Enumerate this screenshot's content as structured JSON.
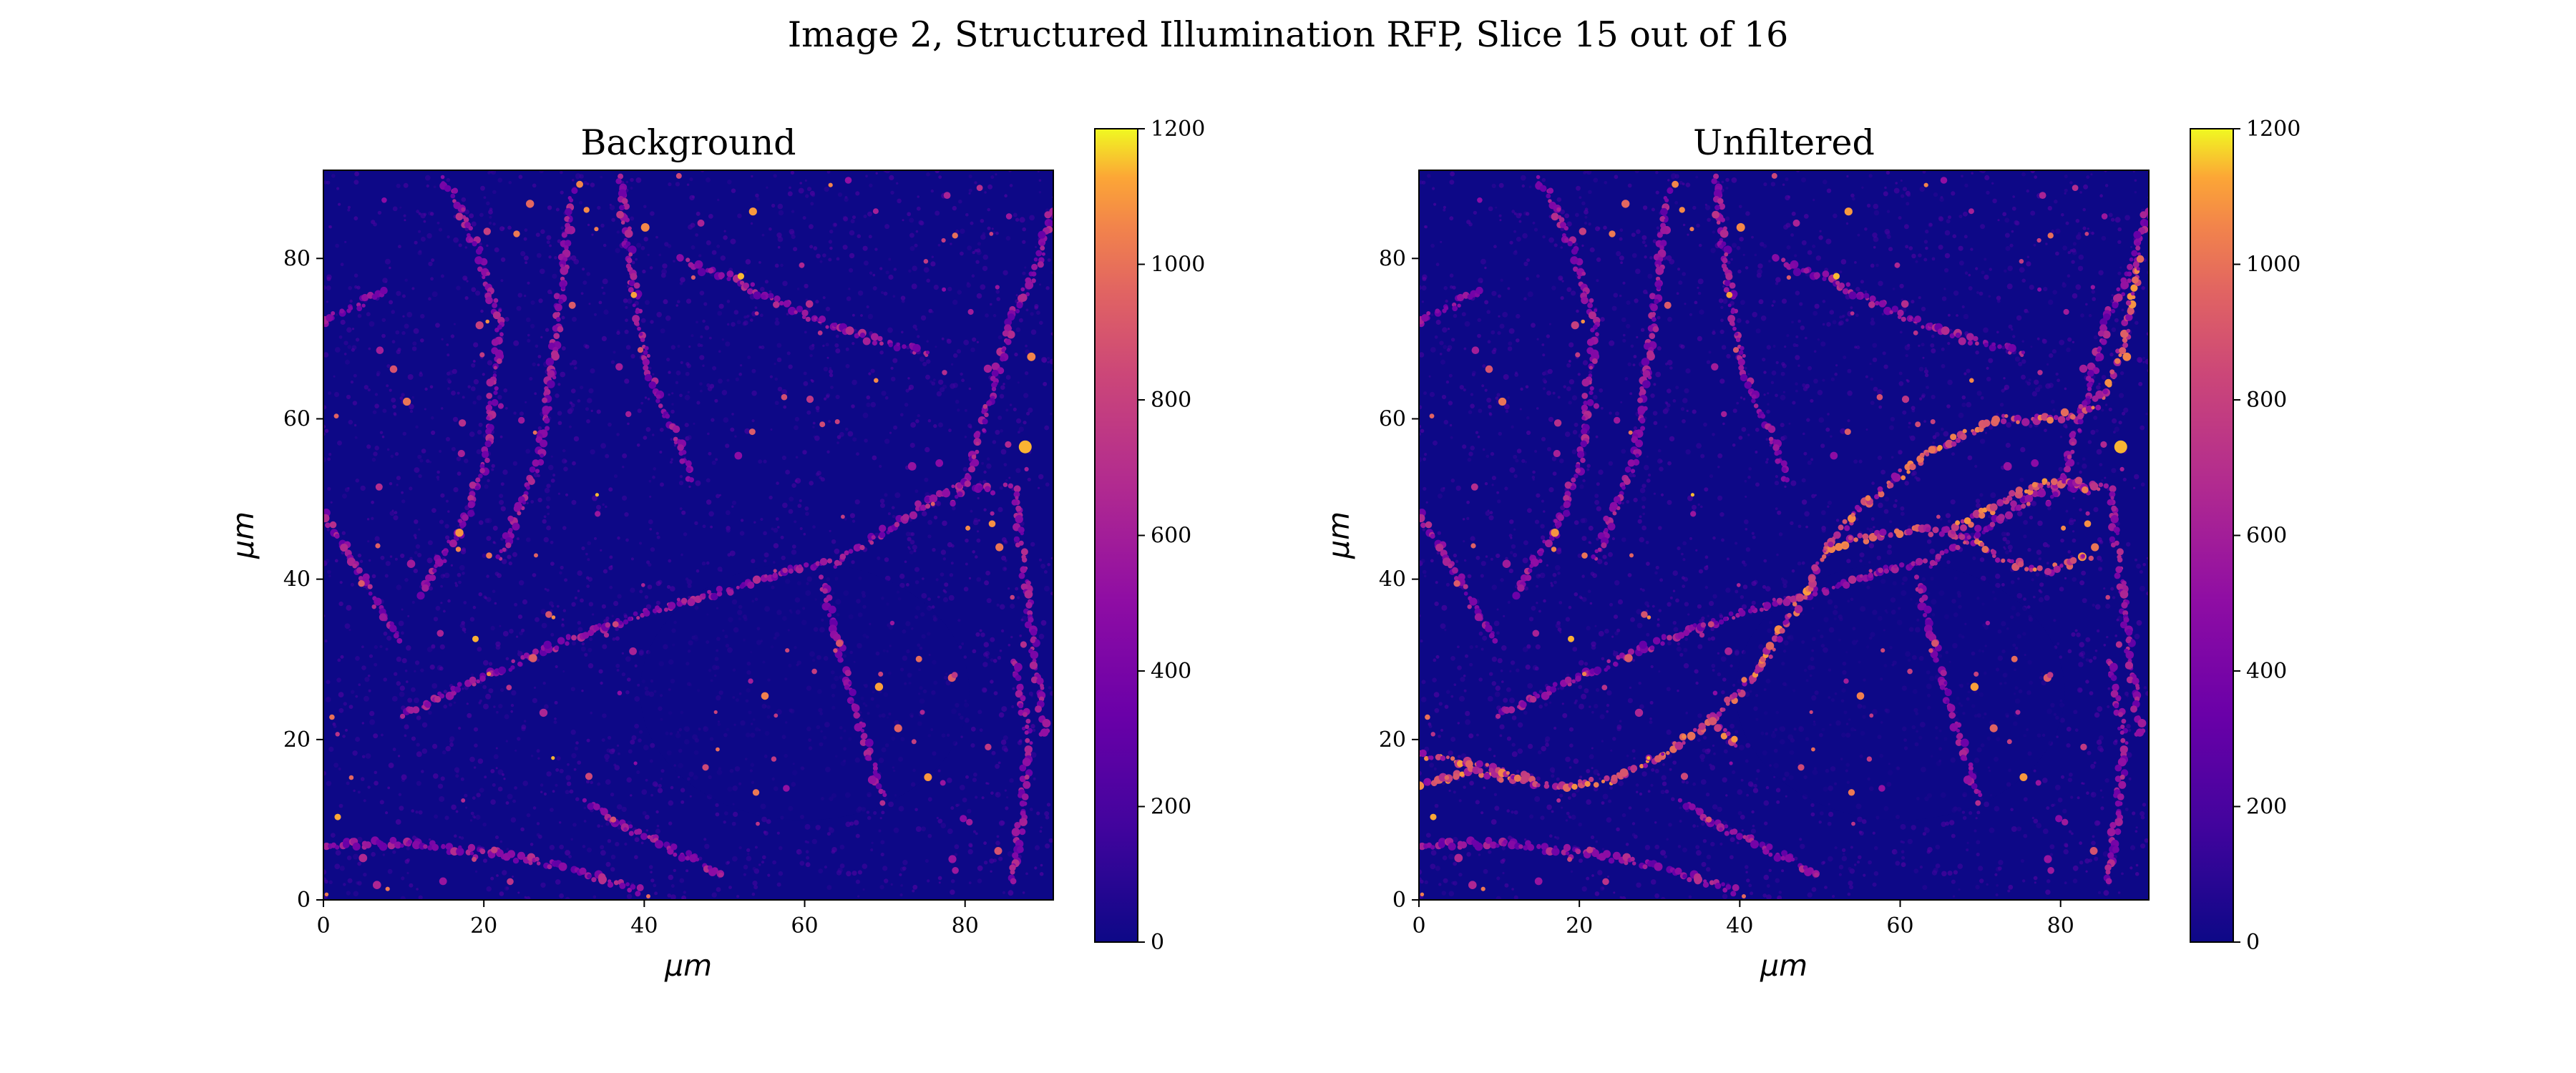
{
  "figure": {
    "title": "Image 2, Structured Illumination RFP, Slice 15 out of 16"
  },
  "chart_data": [
    {
      "type": "heatmap",
      "title": "Background",
      "xlabel": "μm",
      "ylabel": "μm",
      "xlim": [
        0,
        91
      ],
      "ylim": [
        0,
        91
      ],
      "xticks": [
        "0",
        "20",
        "40",
        "60",
        "80"
      ],
      "yticks": [
        "0",
        "20",
        "40",
        "60",
        "80"
      ],
      "colormap": "plasma",
      "colorbar": {
        "range": [
          0,
          1200
        ],
        "ticks": [
          "0",
          "200",
          "400",
          "600",
          "800",
          "1000",
          "1200"
        ]
      }
    },
    {
      "type": "heatmap",
      "title": "Unfiltered",
      "xlabel": "μm",
      "ylabel": "μm",
      "xlim": [
        0,
        91
      ],
      "ylim": [
        0,
        91
      ],
      "xticks": [
        "0",
        "20",
        "40",
        "60",
        "80"
      ],
      "yticks": [
        "0",
        "20",
        "40",
        "60",
        "80"
      ],
      "colormap": "plasma",
      "colorbar": {
        "range": [
          0,
          1200
        ],
        "ticks": [
          "0",
          "200",
          "400",
          "600",
          "800",
          "1000",
          "1200"
        ]
      }
    }
  ],
  "colors": {
    "low": "#0d0887",
    "mid": "#cc4778",
    "high": "#f0f921"
  }
}
